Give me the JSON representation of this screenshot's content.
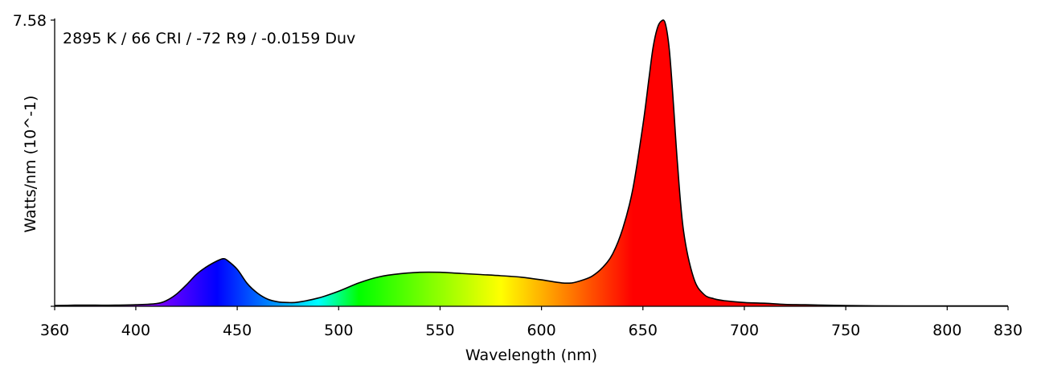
{
  "chart_data": {
    "type": "area",
    "title": "2895 K / 66 CRI / -72 R9 / -0.0159 Duv",
    "xlabel": "Wavelength (nm)",
    "ylabel": "Watts/nm (10^-1)",
    "xlim": [
      360,
      830
    ],
    "ylim": [
      0,
      7.58
    ],
    "x_ticks": [
      360,
      400,
      450,
      500,
      550,
      600,
      650,
      700,
      750,
      800,
      830
    ],
    "y_ticks": [
      7.58
    ],
    "grid": false,
    "fill": "wavelength-colored spectrum",
    "outline_color": "#000000",
    "x": [
      360,
      370,
      380,
      390,
      400,
      410,
      415,
      420,
      425,
      430,
      435,
      440,
      443,
      445,
      450,
      455,
      460,
      465,
      470,
      475,
      480,
      490,
      500,
      510,
      520,
      530,
      540,
      550,
      560,
      570,
      580,
      590,
      600,
      610,
      615,
      620,
      625,
      630,
      635,
      640,
      645,
      650,
      653,
      655,
      657,
      659,
      661,
      663,
      665,
      667,
      670,
      675,
      680,
      685,
      690,
      700,
      710,
      720,
      730,
      750,
      780,
      800,
      830
    ],
    "y": [
      0.02,
      0.03,
      0.03,
      0.03,
      0.04,
      0.07,
      0.15,
      0.32,
      0.57,
      0.85,
      1.05,
      1.2,
      1.26,
      1.22,
      0.98,
      0.6,
      0.35,
      0.19,
      0.12,
      0.1,
      0.11,
      0.22,
      0.4,
      0.62,
      0.78,
      0.86,
      0.9,
      0.9,
      0.87,
      0.84,
      0.81,
      0.77,
      0.7,
      0.62,
      0.62,
      0.69,
      0.8,
      1.02,
      1.38,
      2.05,
      3.1,
      4.8,
      6.05,
      6.85,
      7.35,
      7.55,
      7.5,
      6.8,
      5.4,
      3.8,
      2.0,
      0.75,
      0.32,
      0.2,
      0.15,
      0.1,
      0.08,
      0.05,
      0.04,
      0.02,
      0.01,
      0.01,
      0.01
    ]
  }
}
